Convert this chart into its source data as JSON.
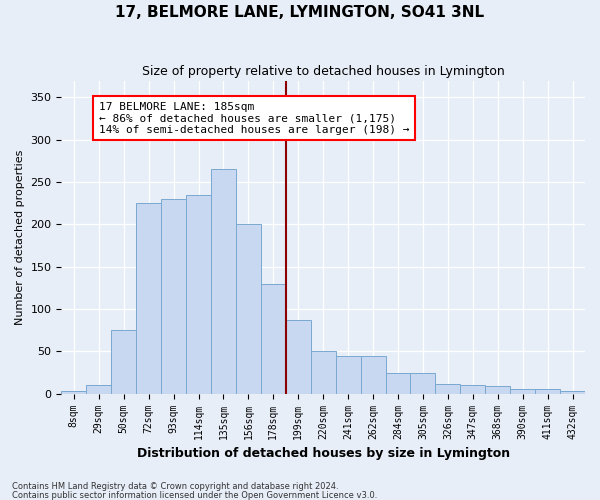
{
  "title": "17, BELMORE LANE, LYMINGTON, SO41 3NL",
  "subtitle": "Size of property relative to detached houses in Lymington",
  "xlabel": "Distribution of detached houses by size in Lymington",
  "ylabel": "Number of detached properties",
  "categories": [
    "8sqm",
    "29sqm",
    "50sqm",
    "72sqm",
    "93sqm",
    "114sqm",
    "135sqm",
    "156sqm",
    "178sqm",
    "199sqm",
    "220sqm",
    "241sqm",
    "262sqm",
    "284sqm",
    "305sqm",
    "326sqm",
    "347sqm",
    "368sqm",
    "390sqm",
    "411sqm",
    "432sqm"
  ],
  "values": [
    3,
    10,
    75,
    225,
    230,
    235,
    265,
    200,
    130,
    87,
    50,
    45,
    44,
    25,
    25,
    11,
    10,
    9,
    5,
    5,
    3
  ],
  "bar_color": "#c8d8f0",
  "bar_edge_color": "#7aa8d0",
  "background_color": "#e8eef8",
  "vline_color": "#8b0000",
  "annotation_text": "17 BELMORE LANE: 185sqm\n← 86% of detached houses are smaller (1,175)\n14% of semi-detached houses are larger (198) →",
  "annotation_box_color": "white",
  "annotation_box_edge": "red",
  "ylim": [
    0,
    370
  ],
  "yticks": [
    0,
    50,
    100,
    150,
    200,
    250,
    300,
    350
  ],
  "footer1": "Contains HM Land Registry data © Crown copyright and database right 2024.",
  "footer2": "Contains public sector information licensed under the Open Government Licence v3.0."
}
